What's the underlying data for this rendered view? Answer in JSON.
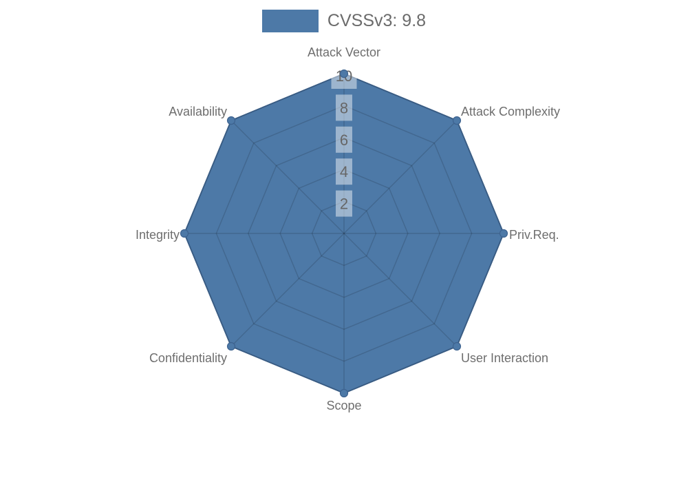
{
  "legend": {
    "items": [
      {
        "label": "CVSSv3: 9.8",
        "color": "#4d79a7"
      }
    ]
  },
  "chart_data": {
    "type": "radar",
    "title": "",
    "categories": [
      "Attack Vector",
      "Attack Complexity",
      "Priv.Req.",
      "User Interaction",
      "Scope",
      "Confidentiality",
      "Integrity",
      "Availability"
    ],
    "series": [
      {
        "name": "CVSSv3: 9.8",
        "values": [
          10,
          10,
          10,
          10,
          10,
          10,
          10,
          10
        ],
        "fill_color": "#4d79a7",
        "border_color": "#426996",
        "point_color": "#4d79a7",
        "point_border_color": "#3d628f"
      }
    ],
    "rlim": [
      0,
      10
    ],
    "ticks": [
      2,
      4,
      6,
      8,
      10
    ],
    "grid": true,
    "legend_position": "top",
    "colors": {
      "background": "#ffffff",
      "grid_line": "rgba(0,0,0,0.14)",
      "axis_label": "#6e6e6e",
      "tick_label": "#666666",
      "tick_backdrop": "rgba(255,255,255,0.45)"
    }
  }
}
